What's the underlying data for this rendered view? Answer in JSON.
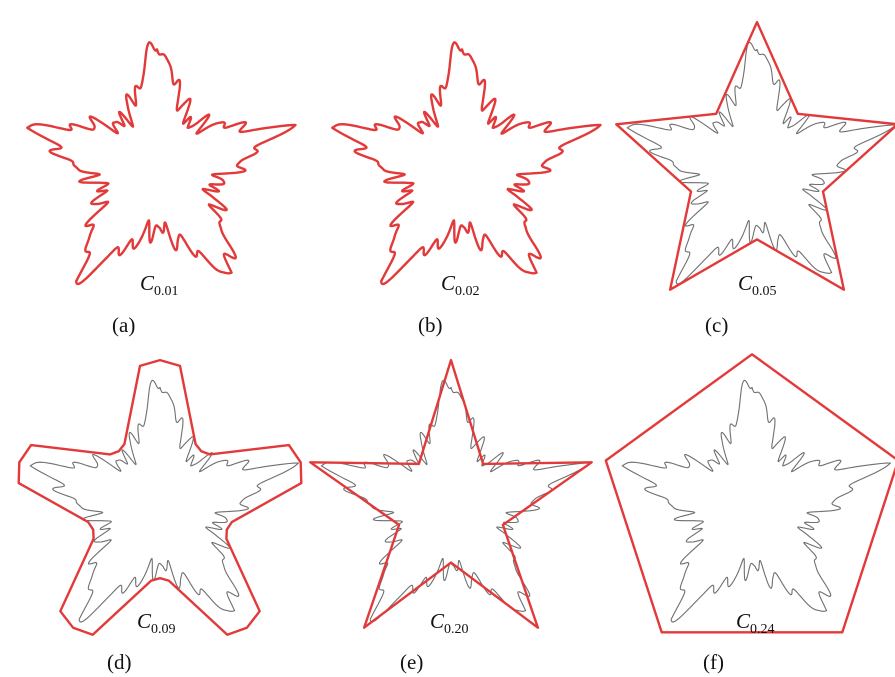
{
  "figure": {
    "panels": [
      {
        "id": "a",
        "label": "(a)",
        "curve_letter": "C",
        "curve_subscript": "0.01",
        "mode": "wavy"
      },
      {
        "id": "b",
        "label": "(b)",
        "curve_letter": "C",
        "curve_subscript": "0.02",
        "mode": "wavy"
      },
      {
        "id": "c",
        "label": "(c)",
        "curve_letter": "C",
        "curve_subscript": "0.05",
        "mode": "star10"
      },
      {
        "id": "d",
        "label": "(d)",
        "curve_letter": "C",
        "curve_subscript": "0.09",
        "mode": "chunky"
      },
      {
        "id": "e",
        "label": "(e)",
        "curve_letter": "C",
        "curve_subscript": "0.20",
        "mode": "star"
      },
      {
        "id": "f",
        "label": "(f)",
        "curve_letter": "C",
        "curve_subscript": "0.24",
        "mode": "pentagon"
      }
    ],
    "colors": {
      "approximation": "#e23a3a",
      "original_contour": "#6f6f6f",
      "text": "#111111"
    }
  }
}
